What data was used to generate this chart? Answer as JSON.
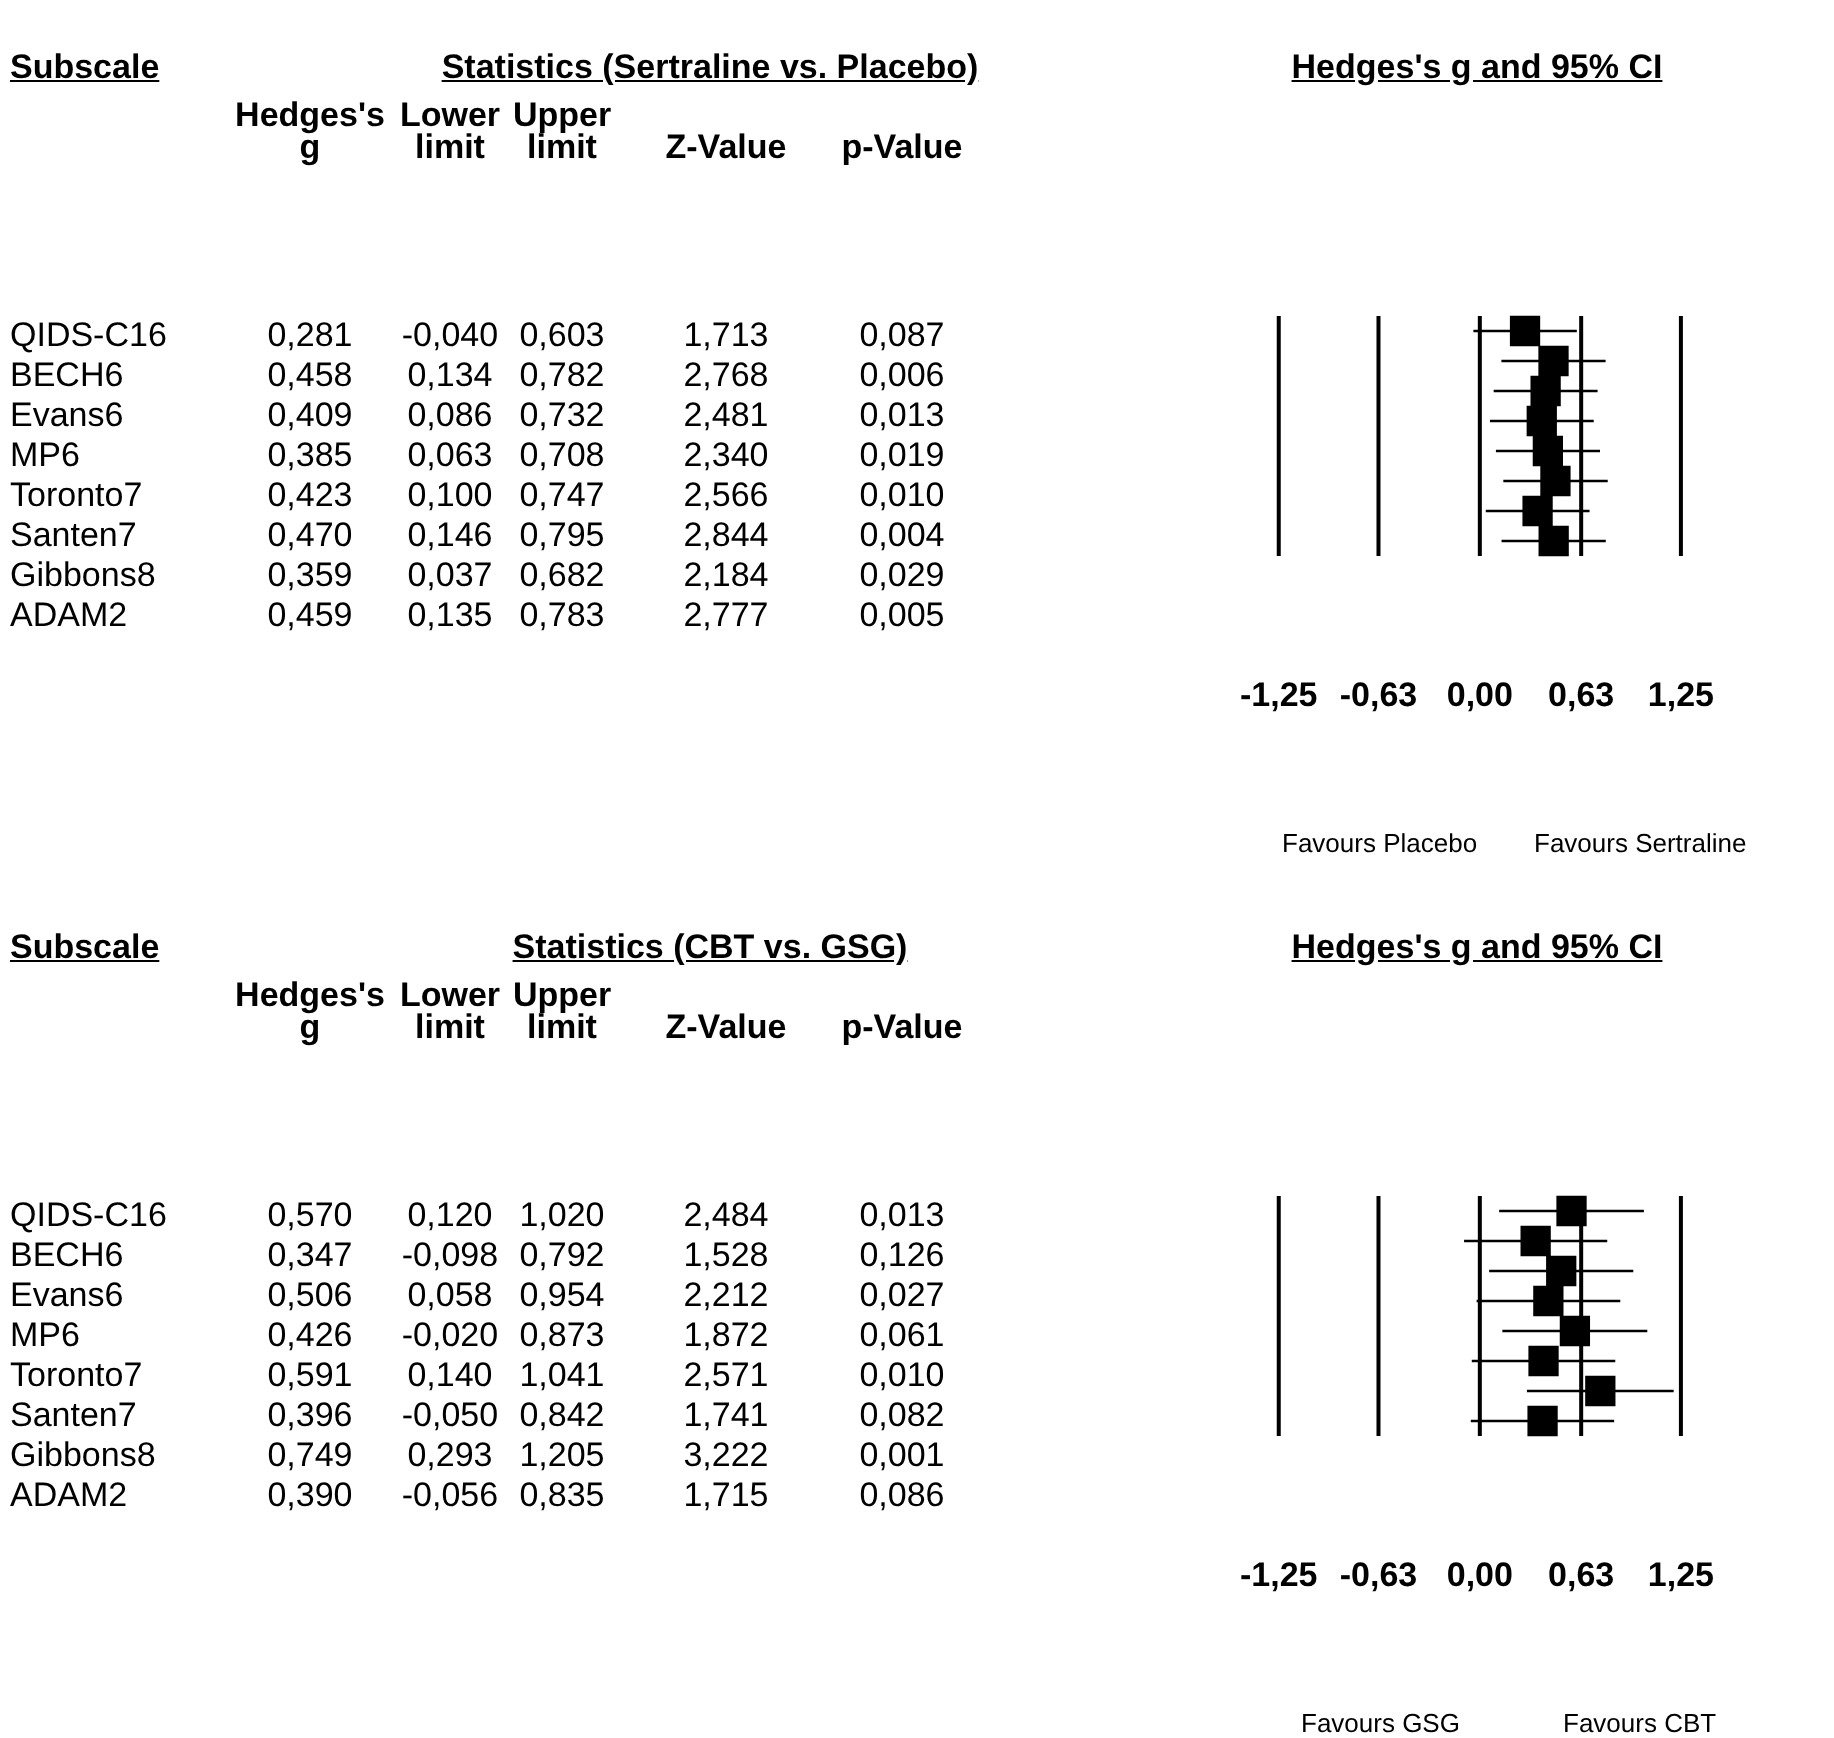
{
  "chart_data": [
    {
      "type": "other",
      "title": "Statistics (Sertraline vs. Placebo)",
      "ylabel": "Subscale",
      "categories": [
        "Hedges's g",
        "Lower limit",
        "Upper limit",
        "Z-Value",
        "p-Value"
      ],
      "y_categories": [
        "QIDS-C16",
        "BECH6",
        "Evans6",
        "MP6",
        "Toronto7",
        "Santen7",
        "Gibbons8",
        "ADAM2"
      ],
      "cell_labels": [
        [
          "0,281",
          "-0,040",
          "0,603",
          "1,713",
          "0,087"
        ],
        [
          "0,458",
          "0,134",
          "0,782",
          "2,768",
          "0,006"
        ],
        [
          "0,409",
          "0,086",
          "0,732",
          "2,481",
          "0,013"
        ],
        [
          "0,385",
          "0,063",
          "0,708",
          "2,340",
          "0,019"
        ],
        [
          "0,423",
          "0,100",
          "0,747",
          "2,566",
          "0,010"
        ],
        [
          "0,470",
          "0,146",
          "0,795",
          "2,844",
          "0,004"
        ],
        [
          "0,359",
          "0,037",
          "0,682",
          "2,184",
          "0,029"
        ],
        [
          "0,459",
          "0,135",
          "0,783",
          "2,777",
          "0,005"
        ]
      ]
    },
    {
      "type": "scatter",
      "title": "Hedges's g and 95% CI",
      "orientation": "horizontal",
      "categories": [
        null,
        null,
        null,
        null,
        null,
        null,
        null,
        null
      ],
      "color": "#000000",
      "marker": "square",
      "grid": "x",
      "tick_labels": "x",
      "values": [
        0.281,
        0.458,
        0.409,
        0.385,
        0.423,
        0.47,
        0.359,
        0.459
      ],
      "errors": [
        [
          -0.04,
          0.603
        ],
        [
          0.134,
          0.782
        ],
        [
          0.086,
          0.732
        ],
        [
          0.063,
          0.708
        ],
        [
          0.1,
          0.747
        ],
        [
          0.146,
          0.795
        ],
        [
          0.037,
          0.682
        ],
        [
          0.135,
          0.783
        ]
      ],
      "xlim": [
        -1.25,
        1.25
      ],
      "xticks": [
        {
          "value": -1.25,
          "label": "-1,25"
        },
        {
          "value": -0.63,
          "label": "-0,63"
        },
        {
          "value": 0,
          "label": "0,00"
        },
        {
          "value": 0.63,
          "label": "0,63"
        },
        {
          "value": 1.25,
          "label": "1,25"
        }
      ],
      "annotations": [
        "Favours Placebo",
        "Favours Sertraline"
      ]
    },
    {
      "type": "other",
      "title": "Statistics (CBT vs. GSG)",
      "ylabel": "Subscale",
      "categories": [
        "Hedges's g",
        "Lower limit",
        "Upper limit",
        "Z-Value",
        "p-Value"
      ],
      "y_categories": [
        "QIDS-C16",
        "BECH6",
        "Evans6",
        "MP6",
        "Toronto7",
        "Santen7",
        "Gibbons8",
        "ADAM2"
      ],
      "cell_labels": [
        [
          "0,570",
          "0,120",
          "1,020",
          "2,484",
          "0,013"
        ],
        [
          "0,347",
          "-0,098",
          "0,792",
          "1,528",
          "0,126"
        ],
        [
          "0,506",
          "0,058",
          "0,954",
          "2,212",
          "0,027"
        ],
        [
          "0,426",
          "-0,020",
          "0,873",
          "1,872",
          "0,061"
        ],
        [
          "0,591",
          "0,140",
          "1,041",
          "2,571",
          "0,010"
        ],
        [
          "0,396",
          "-0,050",
          "0,842",
          "1,741",
          "0,082"
        ],
        [
          "0,749",
          "0,293",
          "1,205",
          "3,222",
          "0,001"
        ],
        [
          "0,390",
          "-0,056",
          "0,835",
          "1,715",
          "0,086"
        ]
      ]
    },
    {
      "type": "scatter",
      "title": "Hedges's g and 95% CI",
      "orientation": "horizontal",
      "categories": [
        null,
        null,
        null,
        null,
        null,
        null,
        null,
        null
      ],
      "color": "#000000",
      "marker": "square",
      "grid": "x",
      "tick_labels": "x",
      "values": [
        0.57,
        0.347,
        0.506,
        0.426,
        0.591,
        0.396,
        0.749,
        0.39
      ],
      "errors": [
        [
          0.12,
          1.02
        ],
        [
          -0.098,
          0.792
        ],
        [
          0.058,
          0.954
        ],
        [
          -0.02,
          0.873
        ],
        [
          0.14,
          1.041
        ],
        [
          -0.05,
          0.842
        ],
        [
          0.293,
          1.205
        ],
        [
          -0.056,
          0.835
        ]
      ],
      "xlim": [
        -1.25,
        1.25
      ],
      "xticks": [
        {
          "value": -1.25,
          "label": "-1,25"
        },
        {
          "value": -0.63,
          "label": "-0,63"
        },
        {
          "value": 0,
          "label": "0,00"
        },
        {
          "value": 0.63,
          "label": "0,63"
        },
        {
          "value": 1.25,
          "label": "1,25"
        }
      ],
      "annotations": [
        "Favours GSG",
        "Favours CBT"
      ]
    }
  ]
}
